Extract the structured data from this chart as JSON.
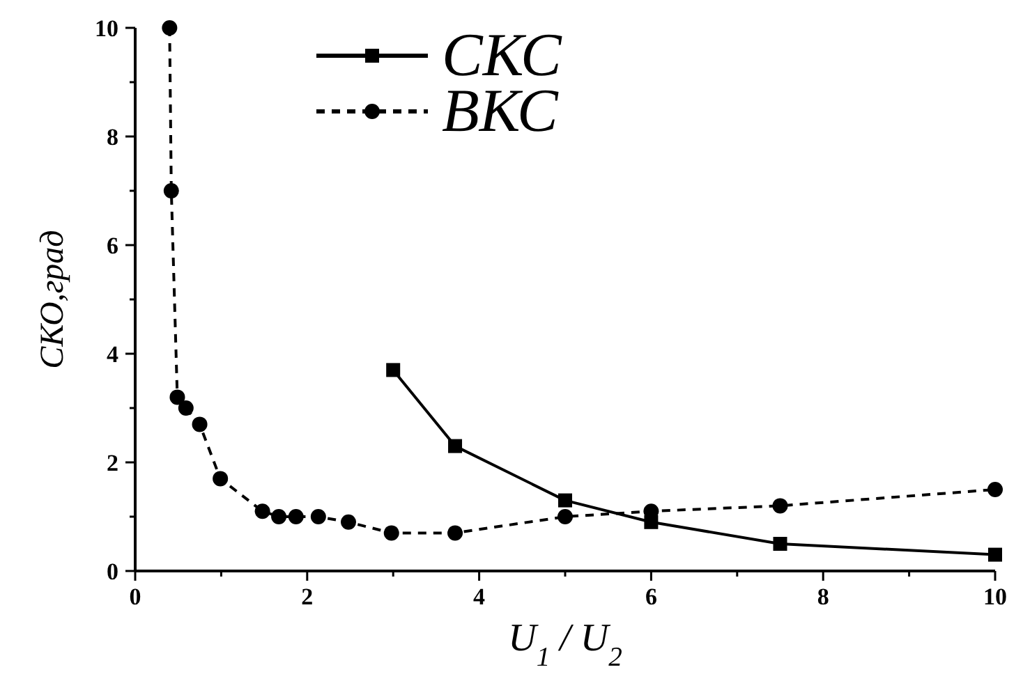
{
  "chart_data": {
    "type": "line",
    "xlabel": "U$_{1}$ / U$_{2}$",
    "ylabel": "СКО,град",
    "xlim": [
      0,
      10
    ],
    "ylim": [
      0,
      10
    ],
    "xticks": [
      0,
      {
        "value": 1,
        "label": null
      },
      2,
      {
        "value": 3,
        "label": null
      },
      4,
      {
        "value": 5,
        "label": null
      },
      6,
      {
        "value": 7,
        "label": null
      },
      8,
      {
        "value": 9,
        "label": null
      },
      10
    ],
    "yticks": [
      0,
      {
        "value": 1,
        "label": null
      },
      2,
      {
        "value": 3,
        "label": null
      },
      4,
      {
        "value": 5,
        "label": null
      },
      6,
      {
        "value": 7,
        "label": null
      },
      8,
      {
        "value": 9,
        "label": null
      },
      10
    ],
    "grid": false,
    "legend": "top",
    "tick_labels": true,
    "series": [
      {
        "name": "СКС",
        "color": "#000000",
        "marker": "square",
        "line_style": "solid",
        "x": [
          3,
          3.72,
          5,
          6,
          7.5,
          10
        ],
        "values": [
          3.7,
          2.3,
          1.3,
          0.9,
          0.5,
          0.3
        ]
      },
      {
        "name": "ВКС",
        "color": "#000000",
        "marker": "circle",
        "line_style": "dashed",
        "x": [
          0.4,
          0.42,
          0.49,
          0.59,
          0.75,
          0.99,
          1.48,
          1.67,
          1.87,
          2.13,
          2.48,
          2.98,
          3.72,
          5,
          6,
          7.5,
          10
        ],
        "values": [
          10,
          7.0,
          3.2,
          3.0,
          2.7,
          1.7,
          1.1,
          1.0,
          1.0,
          1.0,
          0.9,
          0.7,
          0.7,
          1.0,
          1.1,
          1.2,
          1.5
        ]
      }
    ]
  }
}
